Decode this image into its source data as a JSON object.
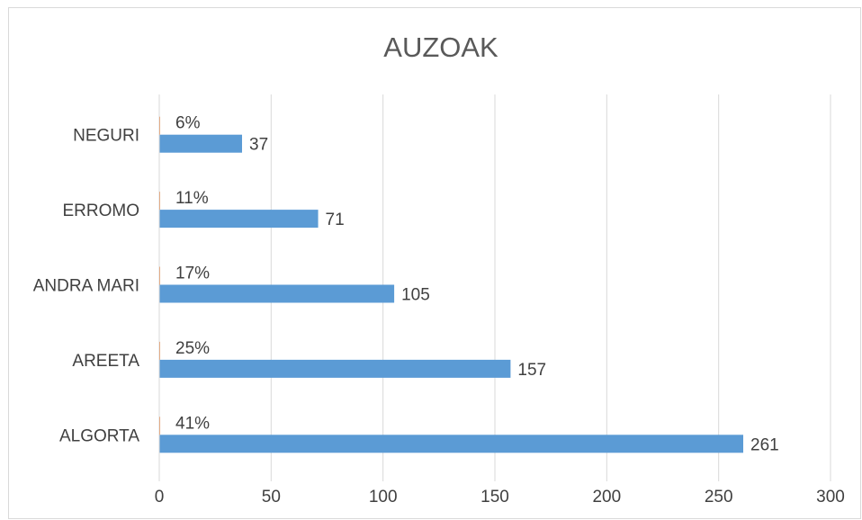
{
  "chart_data": {
    "type": "bar",
    "orientation": "horizontal",
    "title": "AUZOAK",
    "categories": [
      "ALGORTA",
      "AREETA",
      "ANDRA MARI",
      "ERROMO",
      "NEGURI"
    ],
    "series": [
      {
        "color": "#5b9bd5",
        "values": [
          261,
          157,
          105,
          71,
          37
        ]
      },
      {
        "color": "#ed7d31",
        "values": [
          0.41,
          0.25,
          0.17,
          0.11,
          0.06
        ],
        "value_labels": [
          "41%",
          "25%",
          "17%",
          "11%",
          "6%"
        ]
      }
    ],
    "xlim": [
      0,
      300
    ],
    "xticks": [
      0,
      50,
      100,
      150,
      200,
      250,
      300
    ],
    "grid": true
  }
}
